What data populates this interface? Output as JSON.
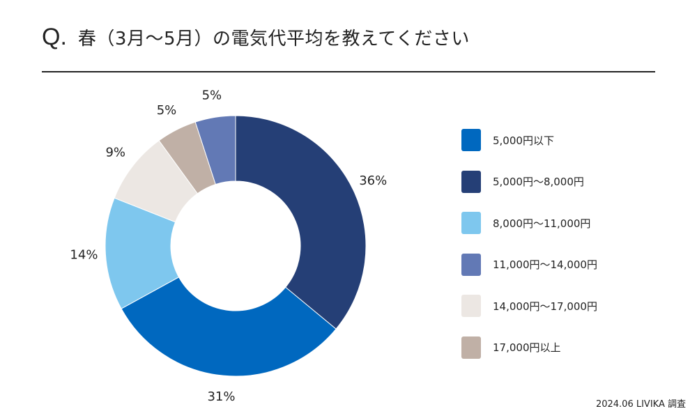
{
  "title": {
    "q": "Q.",
    "text": "春（3月〜5月）の電気代平均を教えてください"
  },
  "footer": {
    "text": "2024.06 LIVIKA 調査"
  },
  "chart_data": {
    "type": "pie",
    "donut": true,
    "categories": [
      "5,000円以下",
      "5,000円〜8,000円",
      "8,000円〜11,000円",
      "11,000円〜14,000円",
      "14,000円〜17,000円",
      "17,000円以上"
    ],
    "values": [
      31,
      36,
      14,
      5,
      9,
      5
    ],
    "value_labels": [
      "31%",
      "36%",
      "14%",
      "5%",
      "9%",
      "5%"
    ],
    "colors": [
      "#0068bf",
      "#253f76",
      "#7ec7ee",
      "#6279b5",
      "#ece7e3",
      "#c0b0a6"
    ],
    "drawing_order": [
      1,
      0,
      2,
      4,
      5,
      3
    ],
    "legend_position": "right"
  }
}
